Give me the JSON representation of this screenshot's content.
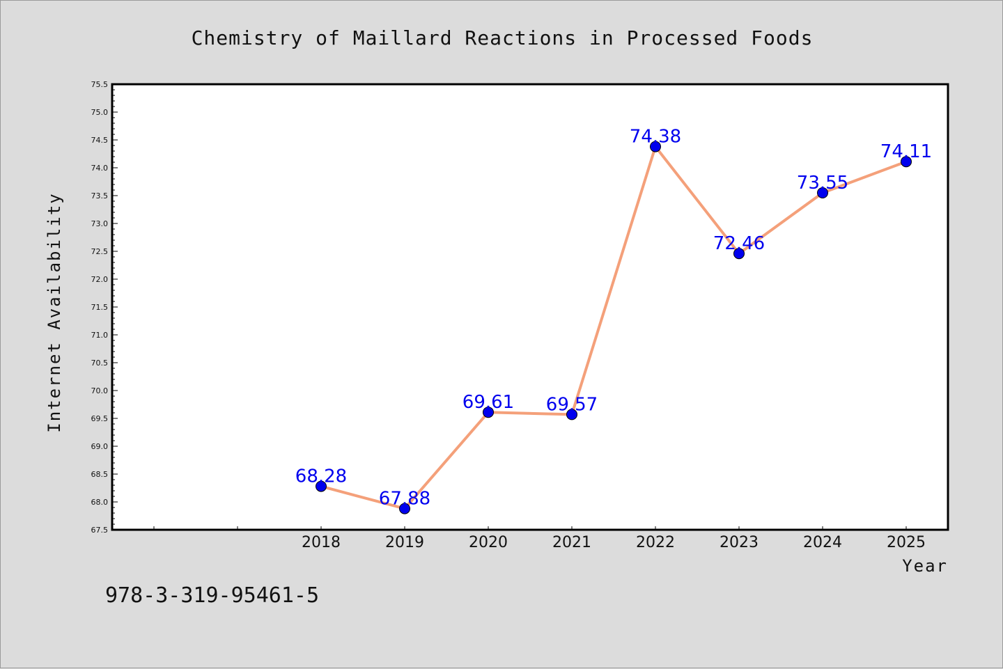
{
  "chart_data": {
    "type": "line",
    "title": "Chemistry of Maillard Reactions in Processed Foods",
    "xlabel": "Year",
    "ylabel": "Internet Availability",
    "categories": [
      "2018",
      "2019",
      "2020",
      "2021",
      "2022",
      "2023",
      "2024",
      "2025"
    ],
    "series": [
      {
        "values": [
          68.28,
          67.88,
          69.61,
          69.57,
          74.38,
          72.46,
          73.55,
          74.11
        ],
        "data_labels": [
          "68.28",
          "67.88",
          "69.61",
          "69.57",
          "74.38",
          "72.46",
          "73.55",
          "74.11"
        ],
        "line_color": "#f4a07a",
        "marker_color": "#0000ee",
        "label_color": "#0000ee"
      }
    ],
    "ylim": [
      67.5,
      75.5
    ],
    "y_ticks": [
      "67.5",
      "68.0",
      "68.5",
      "69.0",
      "69.5",
      "70.0",
      "70.5",
      "71.0",
      "71.5",
      "72.0",
      "72.5",
      "73.0",
      "73.5",
      "74.0",
      "74.5",
      "75.0",
      "75.5"
    ],
    "x_leading_empty_slots": 2,
    "grid": false,
    "legend": "none"
  },
  "footnote": "978-3-319-95461-5",
  "colors": {
    "background": "#dcdcdc",
    "plot_area": "#ffffff",
    "axes": "#000000"
  }
}
